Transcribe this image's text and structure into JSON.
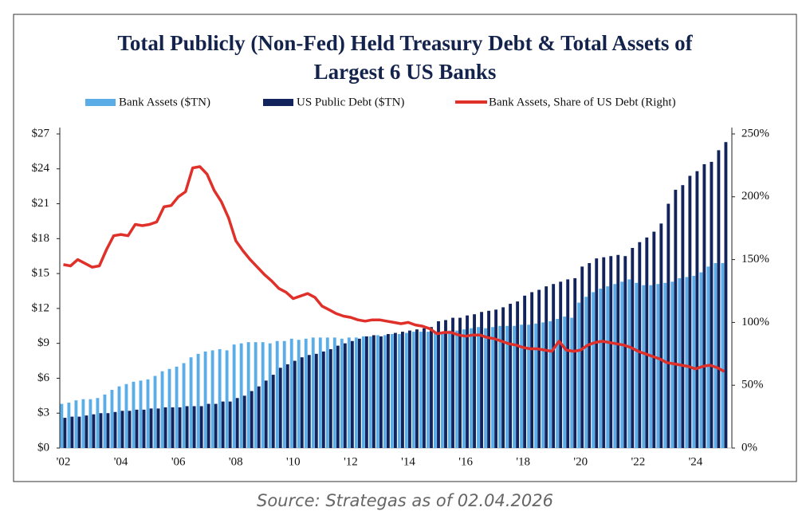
{
  "chart_data": {
    "type": "bar-line",
    "title": "Total Publicly (Non-Fed) Held Treasury Debt & Total Assets of Largest 6 US Banks",
    "source": "Source: Strategas as of 02.04.2026",
    "categories": [
      "'02",
      null,
      null,
      null,
      null,
      null,
      null,
      null,
      "'04",
      null,
      null,
      null,
      null,
      null,
      null,
      null,
      "'06",
      null,
      null,
      null,
      null,
      null,
      null,
      null,
      "'08",
      null,
      null,
      null,
      null,
      null,
      null,
      null,
      "'10",
      null,
      null,
      null,
      null,
      null,
      null,
      null,
      "'12",
      null,
      null,
      null,
      null,
      null,
      null,
      null,
      "'14",
      null,
      null,
      null,
      null,
      null,
      null,
      null,
      "'16",
      null,
      null,
      null,
      null,
      null,
      null,
      null,
      "'18",
      null,
      null,
      null,
      null,
      null,
      null,
      null,
      "'20",
      null,
      null,
      null,
      null,
      null,
      null,
      null,
      "'22",
      null,
      null,
      null,
      null,
      null,
      null,
      null,
      "'24",
      null,
      null,
      null,
      null
    ],
    "series": [
      {
        "name": "Bank Assets ($TN)",
        "color": "#5aade6",
        "kind": "bar",
        "values": [
          3.8,
          3.9,
          4.1,
          4.2,
          4.2,
          4.3,
          4.6,
          5.0,
          5.3,
          5.5,
          5.7,
          5.8,
          5.9,
          6.2,
          6.6,
          6.8,
          7.0,
          7.3,
          7.8,
          8.1,
          8.3,
          8.4,
          8.5,
          8.4,
          8.9,
          9.0,
          9.1,
          9.1,
          9.1,
          9.0,
          9.2,
          9.2,
          9.4,
          9.3,
          9.4,
          9.5,
          9.5,
          9.5,
          9.5,
          9.4,
          9.5,
          9.5,
          9.6,
          9.6,
          9.7,
          9.7,
          9.8,
          9.8,
          9.9,
          10.0,
          10.0,
          10.0,
          10.0,
          10.0,
          10.1,
          10.1,
          10.2,
          10.3,
          10.4,
          10.3,
          10.4,
          10.5,
          10.5,
          10.5,
          10.6,
          10.6,
          10.7,
          10.8,
          10.9,
          11.1,
          11.3,
          11.2,
          12.5,
          13.0,
          13.4,
          13.7,
          13.9,
          14.1,
          14.3,
          14.5,
          14.2,
          14.0,
          14.0,
          14.1,
          14.2,
          14.3,
          14.6,
          14.7,
          14.8,
          15.1,
          15.6,
          15.9,
          15.9
        ]
      },
      {
        "name": "US Public Debt ($TN)",
        "color": "#13235c",
        "kind": "bar",
        "values": [
          2.6,
          2.7,
          2.7,
          2.8,
          2.9,
          3.0,
          3.0,
          3.1,
          3.2,
          3.2,
          3.3,
          3.3,
          3.4,
          3.4,
          3.5,
          3.5,
          3.5,
          3.6,
          3.6,
          3.6,
          3.8,
          3.8,
          4.0,
          4.0,
          4.3,
          4.5,
          4.9,
          5.3,
          5.8,
          6.3,
          6.9,
          7.2,
          7.5,
          7.8,
          8.0,
          8.1,
          8.3,
          8.5,
          8.8,
          9.0,
          9.2,
          9.4,
          9.6,
          9.7,
          9.6,
          9.8,
          9.9,
          10.0,
          10.1,
          10.2,
          10.3,
          10.4,
          10.9,
          11.0,
          11.2,
          11.2,
          11.4,
          11.5,
          11.7,
          11.8,
          11.9,
          12.1,
          12.4,
          12.6,
          13.1,
          13.4,
          13.6,
          13.9,
          14.1,
          14.3,
          14.5,
          14.6,
          15.6,
          15.9,
          16.3,
          16.4,
          16.5,
          16.6,
          16.5,
          17.2,
          17.7,
          18.1,
          18.6,
          19.3,
          21.0,
          22.2,
          22.6,
          23.4,
          23.8,
          24.4,
          24.6,
          25.6,
          26.3
        ]
      },
      {
        "name": "Bank Assets, Share of US Debt (Right)",
        "color": "#e0302a",
        "kind": "line",
        "axis": "y2",
        "values": [
          146,
          145,
          150,
          147,
          144,
          145,
          158,
          169,
          170,
          169,
          178,
          177,
          178,
          180,
          192,
          193,
          200,
          204,
          223,
          224,
          218,
          205,
          196,
          183,
          165,
          157,
          150,
          144,
          138,
          133,
          127,
          124,
          119,
          121,
          123,
          120,
          113,
          110,
          107,
          105,
          104,
          102,
          101,
          102,
          102,
          101,
          100,
          99,
          100,
          98,
          97,
          95,
          91,
          92,
          92,
          90,
          89,
          90,
          90,
          88,
          87,
          85,
          83,
          82,
          80,
          79,
          79,
          78,
          77,
          85,
          78,
          77,
          78,
          82,
          84,
          85,
          84,
          83,
          82,
          80,
          77,
          75,
          73,
          71,
          68,
          67,
          66,
          65,
          63,
          65,
          66,
          64,
          61
        ]
      }
    ],
    "ylim": [
      0,
      27
    ],
    "yticks": [
      {
        "value": 0,
        "label": "$0"
      },
      {
        "value": 3,
        "label": "$3"
      },
      {
        "value": 6,
        "label": "$6"
      },
      {
        "value": 9,
        "label": "$9"
      },
      {
        "value": 12,
        "label": "$12"
      },
      {
        "value": 15,
        "label": "$15"
      },
      {
        "value": 18,
        "label": "$18"
      },
      {
        "value": 21,
        "label": "$21"
      },
      {
        "value": 24,
        "label": "$24"
      },
      {
        "value": 27,
        "label": "$27"
      }
    ],
    "y2lim": [
      0,
      250
    ],
    "y2ticks": [
      {
        "value": 0,
        "label": "0%"
      },
      {
        "value": 50,
        "label": "50%"
      },
      {
        "value": 100,
        "label": "100%"
      },
      {
        "value": 150,
        "label": "150%"
      },
      {
        "value": 200,
        "label": "200%"
      },
      {
        "value": 250,
        "label": "250%"
      }
    ],
    "grid": false
  }
}
